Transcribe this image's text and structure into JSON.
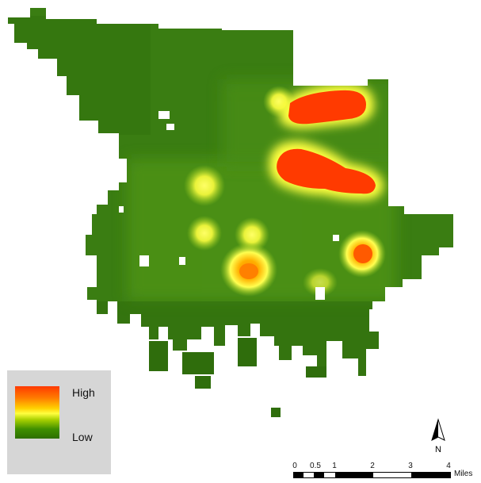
{
  "legend": {
    "high_label": "High",
    "low_label": "Low",
    "ramp_colors": [
      "#ff3a00",
      "#ffd000",
      "#ffff40",
      "#3f8f00",
      "#2e6f00"
    ],
    "background": "#d6d6d6"
  },
  "north_arrow": {
    "label": "N"
  },
  "scale_bar": {
    "ticks": [
      "0",
      "0.5",
      "1",
      "2",
      "3",
      "4"
    ],
    "units": "Miles"
  },
  "map": {
    "base_color": "#3a7d12",
    "hotspot_color": "#ff3a00",
    "halo_color": "#ffff40"
  }
}
